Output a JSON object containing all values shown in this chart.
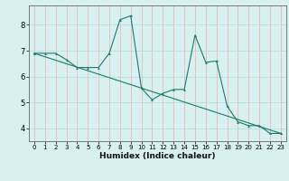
{
  "title": "",
  "xlabel": "Humidex (Indice chaleur)",
  "ylabel": "",
  "bg_color": "#d8f0f0",
  "grid_color_x": "#e8b0b0",
  "grid_color_y": "#b8d8d8",
  "line_color": "#1a7a6e",
  "xlim": [
    -0.5,
    23.5
  ],
  "ylim": [
    3.5,
    8.75
  ],
  "xticks": [
    0,
    1,
    2,
    3,
    4,
    5,
    6,
    7,
    8,
    9,
    10,
    11,
    12,
    13,
    14,
    15,
    16,
    17,
    18,
    19,
    20,
    21,
    22,
    23
  ],
  "yticks": [
    4,
    5,
    6,
    7,
    8
  ],
  "jagged_x": [
    0,
    1,
    2,
    3,
    4,
    5,
    6,
    7,
    8,
    9,
    10,
    11,
    12,
    13,
    14,
    15,
    16,
    17,
    18,
    19,
    20,
    21,
    22,
    23
  ],
  "jagged_y": [
    6.9,
    6.9,
    6.9,
    6.65,
    6.35,
    6.35,
    6.35,
    6.9,
    8.2,
    8.35,
    5.55,
    5.1,
    5.35,
    5.5,
    5.5,
    7.6,
    6.55,
    6.6,
    4.85,
    4.25,
    4.1,
    4.1,
    3.8,
    3.8
  ],
  "trend_x": [
    0,
    23
  ],
  "trend_y": [
    6.9,
    3.8
  ],
  "figsize": [
    3.2,
    2.0
  ],
  "dpi": 100
}
